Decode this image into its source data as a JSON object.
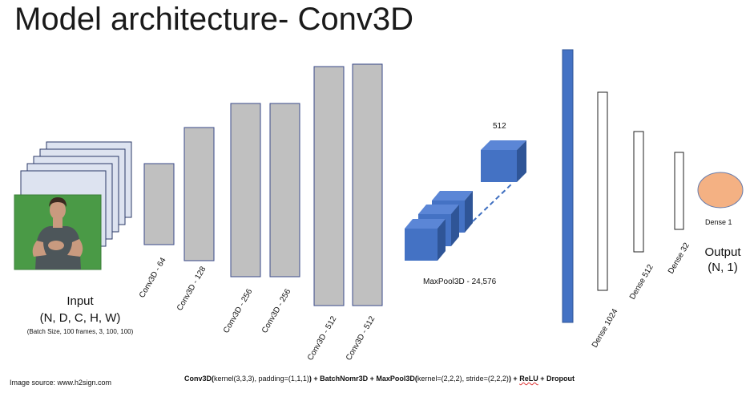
{
  "title": "Model architecture- Conv3D",
  "input": {
    "label": "Input",
    "shape": "(N, D, C, H, W)",
    "detail": "(Batch Size, 100 frames, 3, 100, 100)"
  },
  "conv_layers": [
    "Conv3D - 64",
    "Conv3D - 128",
    "Conv3D - 256",
    "Conv3D - 256",
    "Conv3D - 512",
    "Conv3D - 512"
  ],
  "pool": {
    "label": "MaxPool3D - 24,576",
    "cube_label": "512"
  },
  "dense_layers": [
    "Dense 1024",
    "Dense 512",
    "Dense 32"
  ],
  "dense_final": "Dense 1",
  "output": {
    "label": "Output",
    "shape": "(N, 1)"
  },
  "source": "Image source: www.h2sign.com",
  "formula": {
    "p1": "Conv3D(",
    "p2": "kernel(3,3,3), padding=(1,1,1)",
    "p3": ") + BatchNomr3D + MaxPool3D(",
    "p4": "kernel=(2,2,2), stride=(2,2,2)",
    "p5": ") + ",
    "p6": "ReLU",
    "p7": " + Dropout"
  },
  "colors": {
    "conv_fill": "#c0c0c0",
    "conv_stroke": "#3a4a8a",
    "cube_front": "#4472c4",
    "cube_top": "#5b86d6",
    "cube_side": "#2f5597",
    "blue_bar": "#4472c4",
    "output_circle": "#f4b183",
    "frame_fill": "#dde3f0",
    "green_bg": "#4a9a46"
  }
}
